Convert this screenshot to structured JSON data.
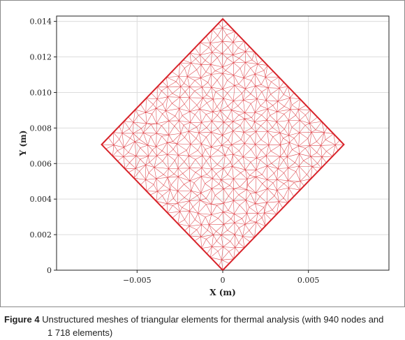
{
  "chart_data": {
    "type": "mesh",
    "title": "",
    "xlabel": "X (m)",
    "ylabel": "Y (m)",
    "xlim": [
      -0.0097,
      0.0097
    ],
    "ylim": [
      0,
      0.0143
    ],
    "xticks": [
      -0.005,
      0,
      0.005
    ],
    "xtick_labels": [
      "−0.005",
      "0",
      "0.005"
    ],
    "yticks": [
      0,
      0.002,
      0.004,
      0.006,
      0.008,
      0.01,
      0.012,
      0.014
    ],
    "ytick_labels": [
      "0",
      "0.002",
      "0.004",
      "0.006",
      "0.008",
      "0.010",
      "0.012",
      "0.014"
    ],
    "grid": true,
    "domain_outline": {
      "x": [
        0,
        0.00707,
        0,
        -0.00707
      ],
      "y": [
        0,
        0.00707,
        0.01414,
        0.00707
      ]
    },
    "mesh": {
      "nodes": 940,
      "elements": 1718,
      "element_type": "triangular"
    },
    "color": "#d8232a"
  },
  "caption": {
    "label": "Figure 4",
    "text_line1": "Unstructured meshes of triangular elements for thermal analysis (with 940 nodes and",
    "text_line2": "1 718 elements)"
  }
}
